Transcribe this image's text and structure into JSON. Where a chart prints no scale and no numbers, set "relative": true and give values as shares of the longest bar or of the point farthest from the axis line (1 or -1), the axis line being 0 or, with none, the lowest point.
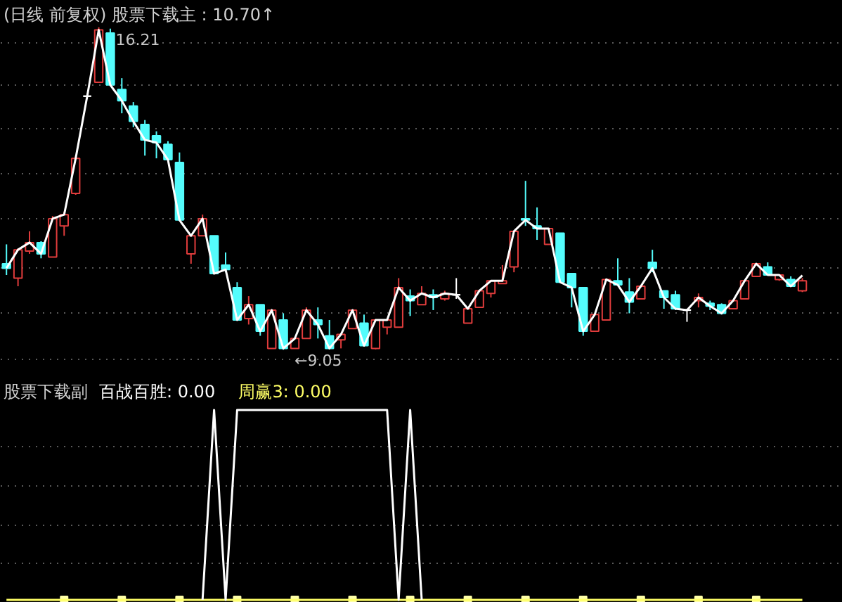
{
  "chart_data": [
    {
      "type": "candlestick",
      "title": "(日线 前复权) 股票下载主 : 10.70↑",
      "categories": [
        null,
        null,
        null,
        null,
        null,
        null,
        null,
        null,
        null,
        null,
        null,
        null,
        null,
        null,
        null,
        null,
        null,
        null,
        null,
        null,
        null,
        null,
        null,
        null,
        null,
        null,
        null,
        null,
        null,
        null,
        null,
        null,
        null,
        null,
        null,
        null,
        null,
        null,
        null,
        null,
        null,
        null,
        null,
        null,
        null,
        null,
        null,
        null,
        null,
        null,
        null,
        null,
        null,
        null,
        null,
        null,
        null,
        null,
        null,
        null,
        null,
        null,
        null,
        null,
        null,
        null,
        null,
        null,
        null,
        null
      ],
      "ohlc": [
        [
          10.96,
          11.39,
          10.71,
          10.86
        ],
        [
          10.64,
          11.3,
          10.46,
          11.27
        ],
        [
          11.24,
          11.68,
          11.18,
          11.43
        ],
        [
          11.43,
          11.46,
          11.08,
          11.18
        ],
        [
          11.11,
          12.02,
          11.11,
          11.96
        ],
        [
          11.8,
          12.11,
          11.58,
          12.05
        ],
        [
          12.52,
          13.36,
          12.49,
          13.3
        ],
        [
          14.68,
          14.74,
          14.62,
          14.68
        ],
        [
          14.99,
          16.21,
          14.99,
          16.15
        ],
        [
          16.08,
          16.18,
          14.93,
          14.93
        ],
        [
          14.83,
          15.08,
          14.3,
          14.58
        ],
        [
          14.46,
          14.55,
          13.99,
          14.12
        ],
        [
          14.05,
          14.15,
          13.36,
          13.71
        ],
        [
          13.8,
          13.9,
          13.3,
          13.65
        ],
        [
          13.61,
          13.68,
          13.27,
          13.27
        ],
        [
          13.21,
          13.43,
          11.93,
          11.93
        ],
        [
          11.18,
          11.58,
          10.96,
          11.58
        ],
        [
          11.58,
          12.05,
          11.58,
          11.96
        ],
        [
          11.58,
          11.58,
          10.74,
          10.74
        ],
        [
          10.93,
          11.21,
          10.77,
          10.83
        ],
        [
          10.43,
          10.55,
          9.71,
          9.71
        ],
        [
          9.74,
          10.24,
          9.61,
          10.05
        ],
        [
          10.05,
          10.05,
          9.36,
          9.46
        ],
        [
          9.08,
          9.93,
          9.08,
          9.93
        ],
        [
          9.71,
          9.86,
          9.05,
          9.08
        ],
        [
          9.08,
          9.3,
          9.08,
          9.3
        ],
        [
          9.3,
          9.99,
          9.3,
          9.93
        ],
        [
          9.71,
          9.99,
          9.3,
          9.61
        ],
        [
          9.36,
          9.71,
          9.08,
          9.08
        ],
        [
          9.27,
          9.39,
          9.08,
          9.39
        ],
        [
          9.52,
          9.93,
          9.52,
          9.93
        ],
        [
          9.64,
          9.83,
          9.14,
          9.14
        ],
        [
          9.08,
          9.71,
          9.06,
          9.71
        ],
        [
          9.55,
          9.71,
          9.39,
          9.71
        ],
        [
          9.55,
          10.64,
          9.55,
          10.43
        ],
        [
          10.24,
          10.39,
          9.8,
          10.14
        ],
        [
          10.05,
          10.46,
          10.05,
          10.3
        ],
        [
          10.27,
          10.39,
          9.93,
          10.21
        ],
        [
          10.18,
          10.36,
          10.14,
          10.3
        ],
        [
          10.27,
          10.64,
          10.18,
          10.27
        ],
        [
          9.64,
          9.96,
          9.64,
          9.96
        ],
        [
          9.99,
          10.36,
          9.99,
          10.36
        ],
        [
          10.3,
          10.58,
          10.21,
          10.58
        ],
        [
          10.52,
          10.93,
          10.52,
          10.58
        ],
        [
          10.89,
          11.68,
          10.77,
          11.68
        ],
        [
          11.96,
          12.8,
          11.8,
          11.93
        ],
        [
          11.8,
          12.21,
          11.49,
          11.74
        ],
        [
          11.39,
          11.74,
          11.39,
          11.74
        ],
        [
          11.64,
          11.64,
          10.55,
          10.55
        ],
        [
          10.74,
          10.74,
          9.99,
          10.43
        ],
        [
          10.43,
          10.43,
          9.36,
          9.46
        ],
        [
          9.46,
          9.83,
          9.46,
          9.83
        ],
        [
          9.71,
          10.61,
          9.71,
          10.61
        ],
        [
          10.58,
          11.08,
          10.49,
          10.49
        ],
        [
          10.33,
          10.64,
          9.86,
          10.11
        ],
        [
          10.18,
          10.46,
          10.18,
          10.46
        ],
        [
          10.99,
          11.27,
          10.77,
          10.86
        ],
        [
          10.36,
          10.36,
          9.96,
          10.21
        ],
        [
          10.27,
          10.36,
          9.93,
          9.96
        ],
        [
          9.93,
          9.96,
          9.67,
          9.93
        ],
        [
          10.14,
          10.3,
          9.99,
          10.21
        ],
        [
          10.08,
          10.14,
          9.93,
          10.02
        ],
        [
          10.05,
          10.08,
          9.83,
          9.86
        ],
        [
          9.96,
          10.14,
          9.96,
          10.14
        ],
        [
          10.18,
          10.58,
          10.18,
          10.58
        ],
        [
          10.68,
          10.96,
          10.68,
          10.96
        ],
        [
          10.89,
          10.99,
          10.71,
          10.71
        ],
        [
          10.61,
          10.71,
          10.58,
          10.71
        ],
        [
          10.61,
          10.68,
          10.46,
          10.46
        ],
        [
          10.36,
          10.64,
          10.33,
          10.58
        ]
      ],
      "colors": [
        "#54fcfc",
        "#e03c3c",
        "#e03c3c",
        "#54fcfc",
        "#e03c3c",
        "#e03c3c",
        "#e03c3c",
        "#ffffff",
        "#e03c3c",
        "#54fcfc",
        "#54fcfc",
        "#54fcfc",
        "#54fcfc",
        "#54fcfc",
        "#54fcfc",
        "#54fcfc",
        "#e03c3c",
        "#e03c3c",
        "#54fcfc",
        "#54fcfc",
        "#54fcfc",
        "#e03c3c",
        "#54fcfc",
        "#e03c3c",
        "#54fcfc",
        "#e03c3c",
        "#e03c3c",
        "#54fcfc",
        "#54fcfc",
        "#e03c3c",
        "#e03c3c",
        "#54fcfc",
        "#e03c3c",
        "#e03c3c",
        "#e03c3c",
        "#54fcfc",
        "#e03c3c",
        "#54fcfc",
        "#e03c3c",
        "#ffffff",
        "#e03c3c",
        "#e03c3c",
        "#e03c3c",
        "#e03c3c",
        "#e03c3c",
        "#54fcfc",
        "#54fcfc",
        "#e03c3c",
        "#54fcfc",
        "#54fcfc",
        "#54fcfc",
        "#e03c3c",
        "#e03c3c",
        "#54fcfc",
        "#54fcfc",
        "#e03c3c",
        "#54fcfc",
        "#54fcfc",
        "#54fcfc",
        "#ffffff",
        "#e03c3c",
        "#54fcfc",
        "#54fcfc",
        "#e03c3c",
        "#e03c3c",
        "#e03c3c",
        "#54fcfc",
        "#e03c3c",
        "#54fcfc",
        "#e03c3c"
      ],
      "series": [
        {
          "type": "line",
          "color": "#ffffff",
          "values": [
            10.86,
            11.27,
            11.43,
            11.18,
            11.96,
            12.05,
            13.3,
            14.68,
            16.15,
            14.93,
            14.58,
            14.12,
            13.71,
            13.65,
            13.27,
            11.93,
            11.58,
            11.96,
            10.74,
            10.83,
            9.71,
            10.05,
            9.46,
            9.93,
            9.08,
            9.3,
            9.93,
            9.61,
            9.08,
            9.39,
            9.93,
            9.14,
            9.71,
            9.71,
            10.43,
            10.14,
            10.3,
            10.21,
            10.3,
            10.27,
            9.96,
            10.36,
            10.58,
            10.58,
            11.68,
            11.93,
            11.74,
            11.74,
            10.55,
            10.43,
            9.46,
            9.83,
            10.61,
            10.49,
            10.11,
            10.46,
            10.86,
            10.21,
            9.96,
            9.93,
            10.21,
            10.02,
            9.86,
            10.14,
            10.58,
            10.96,
            10.71,
            10.71,
            10.46,
            10.7
          ]
        }
      ],
      "annotations": [
        "16.21",
        "←9.05"
      ],
      "ylim": [
        8.43,
        16.8
      ],
      "yticks": [
        {
          "value": 15.87,
          "label": null
        },
        {
          "value": 14.93,
          "label": null
        },
        {
          "value": 13.96,
          "label": null
        },
        {
          "value": 12.96,
          "label": null
        },
        {
          "value": 11.96,
          "label": null
        },
        {
          "value": 10.86,
          "label": null
        },
        {
          "value": 9.86,
          "label": null
        },
        {
          "value": 8.83,
          "label": null
        }
      ],
      "grid": "y",
      "tick_labels": false
    },
    {
      "type": "line",
      "title": "股票下载副",
      "relative": true,
      "grid": "y",
      "tick_labels": false,
      "categories": [
        null,
        null,
        null,
        null,
        null,
        null,
        null,
        null,
        null,
        null,
        null,
        null,
        null,
        null,
        null,
        null,
        null,
        null,
        null,
        null,
        null,
        null,
        null,
        null,
        null,
        null,
        null,
        null,
        null,
        null,
        null,
        null,
        null,
        null,
        null,
        null,
        null,
        null,
        null,
        null,
        null,
        null,
        null,
        null,
        null,
        null,
        null,
        null,
        null,
        null,
        null,
        null,
        null,
        null,
        null,
        null,
        null,
        null,
        null,
        null,
        null,
        null,
        null,
        null,
        null,
        null,
        null,
        null,
        null,
        null
      ],
      "series": [
        {
          "name": "百战百胜: 0.00",
          "type": "line",
          "color": "#ffffff",
          "values": [
            null,
            null,
            null,
            null,
            null,
            null,
            null,
            null,
            null,
            null,
            null,
            null,
            null,
            null,
            null,
            null,
            null,
            0,
            1,
            0,
            1,
            1,
            1,
            1,
            1,
            1,
            1,
            1,
            1,
            1,
            1,
            1,
            1,
            1,
            0,
            1,
            0,
            null,
            null,
            null,
            null,
            null,
            null,
            null,
            null,
            null,
            null,
            null,
            null,
            null,
            null,
            null,
            null,
            null,
            null,
            null,
            null,
            null,
            null,
            null,
            null,
            null,
            null,
            null,
            null,
            null,
            null,
            null,
            null,
            null
          ]
        },
        {
          "name": "周赢3: 0.00",
          "type": "line",
          "color": "#ffff66",
          "values": [
            0,
            0,
            0,
            0,
            0,
            0,
            0,
            0,
            0,
            0,
            0,
            0,
            0,
            0,
            0,
            0,
            0,
            0,
            0,
            0,
            0,
            0,
            0,
            0,
            0,
            0,
            0,
            0,
            0,
            0,
            0,
            0,
            0,
            0,
            0,
            0,
            0,
            0,
            0,
            0,
            0,
            0,
            0,
            0,
            0,
            0,
            0,
            0,
            0,
            0,
            0,
            0,
            0,
            0,
            0,
            0,
            0,
            0,
            0,
            0,
            0,
            0,
            0,
            0,
            0,
            0,
            0,
            0,
            0,
            0
          ]
        },
        {
          "type": "scatter",
          "marker": "square",
          "color": "#ffffa8",
          "values": [
            null,
            null,
            null,
            null,
            null,
            0,
            null,
            null,
            null,
            null,
            0,
            null,
            null,
            null,
            null,
            0,
            null,
            null,
            null,
            null,
            0,
            null,
            null,
            null,
            null,
            0,
            null,
            null,
            null,
            null,
            0,
            null,
            null,
            null,
            null,
            0,
            null,
            null,
            null,
            null,
            0,
            null,
            null,
            null,
            null,
            0,
            null,
            null,
            null,
            null,
            0,
            null,
            null,
            null,
            null,
            0,
            null,
            null,
            null,
            null,
            0,
            null,
            null,
            null,
            null,
            0,
            null,
            null,
            null,
            null
          ]
        }
      ]
    }
  ]
}
